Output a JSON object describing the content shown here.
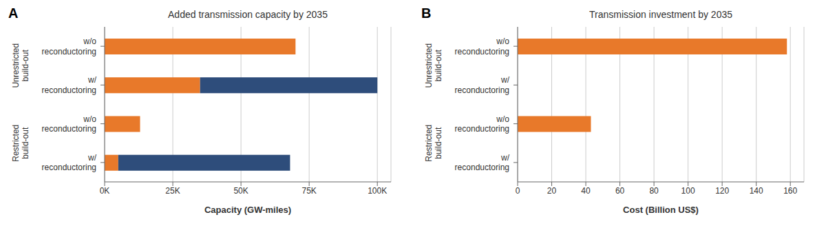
{
  "chart_data": [
    {
      "type": "bar",
      "orientation": "horizontal",
      "stacked": true,
      "panel_label": "A",
      "title": "Added transmission capacity by 2035",
      "xlabel": "Capacity (GW-miles)",
      "categories": [
        "w/o\nreconductoring",
        "w/\nreconductoring",
        "w/o\nreconductoring",
        "w/\nreconductoring"
      ],
      "group_labels": [
        "Unrestricted\nbuild-out",
        "Restricted\nbuild-out"
      ],
      "series": [
        {
          "color": "#E8792A",
          "values": [
            70000,
            35000,
            13000,
            5000
          ]
        },
        {
          "color": "#2E4D7B",
          "values": [
            0,
            65000,
            0,
            63000
          ]
        }
      ],
      "xlim": [
        0,
        105000
      ],
      "xticks": [
        {
          "value": 0,
          "label": "0K"
        },
        {
          "value": 25000,
          "label": "25K"
        },
        {
          "value": 50000,
          "label": "50K"
        },
        {
          "value": 75000,
          "label": "75K"
        },
        {
          "value": 100000,
          "label": "100K"
        }
      ],
      "grid": true
    },
    {
      "type": "bar",
      "orientation": "horizontal",
      "stacked": true,
      "panel_label": "B",
      "title": "Transmission investment by 2035",
      "xlabel": "Cost (Billion US$)",
      "categories": [
        "w/o\nreconductoring",
        "w/\nreconductoring",
        "w/o\nreconductoring",
        "w/\nreconductoring"
      ],
      "group_labels": [
        "Unrestricted\nbuild-out",
        "Restricted\nbuild-out"
      ],
      "series": [
        {
          "color": "#E8792A",
          "values": [
            158,
            0,
            43,
            0
          ]
        },
        {
          "color": "#2E4D7B",
          "values": [
            0,
            0,
            0,
            0
          ]
        }
      ],
      "xlim": [
        0,
        168
      ],
      "xticks": [
        0,
        20,
        40,
        60,
        80,
        100,
        120,
        140,
        160
      ],
      "grid": true
    }
  ]
}
